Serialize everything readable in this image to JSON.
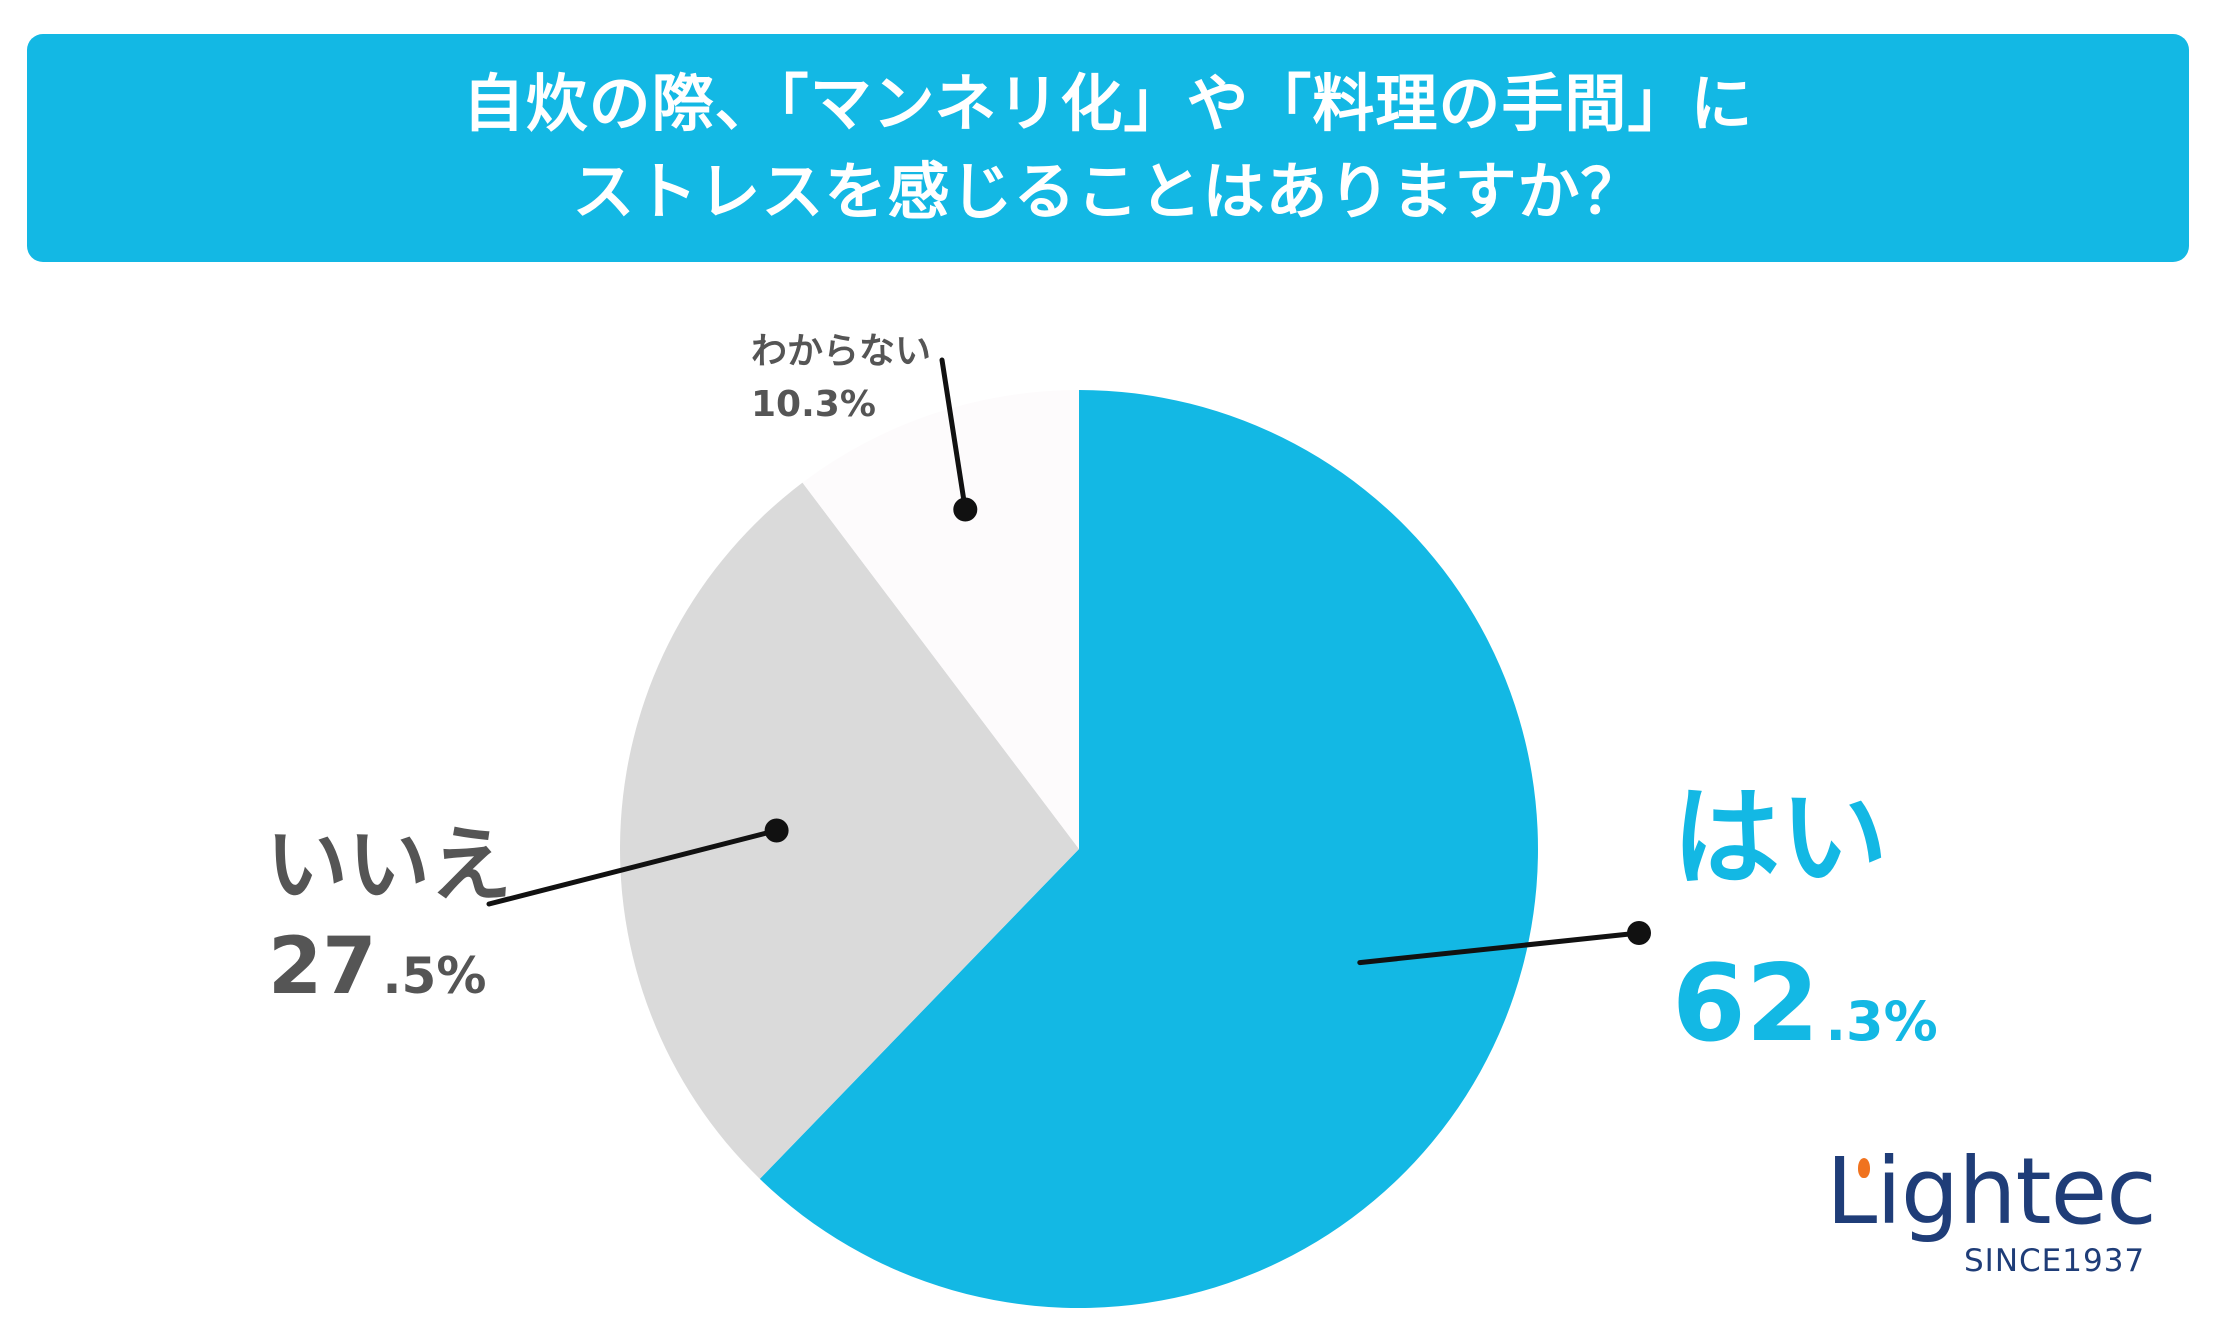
{
  "title": {
    "line1": "自炊の際、「マンネリ化」や「料理の手間」に",
    "line2": "ストレスを感じることはありますか？"
  },
  "chart_data": {
    "type": "pie",
    "title": "自炊の際、「マンネリ化」や「料理の手間」にストレスを感じることはありますか？",
    "slices": [
      {
        "label": "はい",
        "value": 62.3,
        "int_text": "62",
        "dec_text": ".3%",
        "color": "#13b8e4",
        "label_color": "#13b8e4"
      },
      {
        "label": "いいえ",
        "value": 27.5,
        "int_text": "27",
        "dec_text": ".5%",
        "color": "#dadada",
        "label_color": "#555555"
      },
      {
        "label": "わからない",
        "value": 10.3,
        "text": "10.3%",
        "color": "#fdfbfc",
        "label_color": "#555555"
      }
    ],
    "start": "12 o'clock",
    "direction": "clockwise"
  },
  "logo": {
    "name": "Lightec",
    "tagline": "SINCE1937",
    "accent_color": "#f0731f",
    "text_color": "#1f3d78"
  }
}
